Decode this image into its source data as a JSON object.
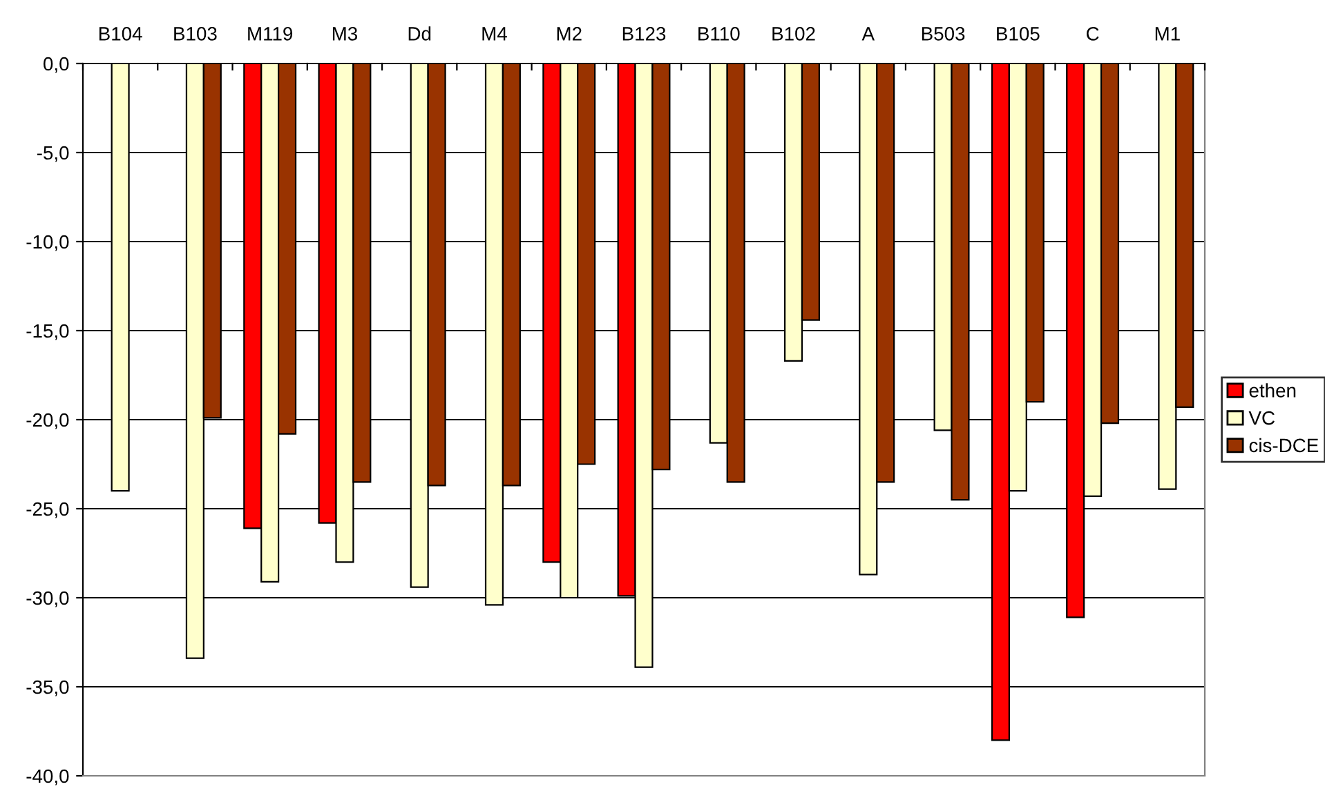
{
  "chart_data": {
    "type": "bar",
    "categories": [
      "B104",
      "B103",
      "M119",
      "M3",
      "Dd",
      "M4",
      "M2",
      "B123",
      "B110",
      "B102",
      "A",
      "B503",
      "B105",
      "C",
      "M1"
    ],
    "series": [
      {
        "name": "ethen",
        "color": "#ff0000",
        "values": [
          null,
          null,
          -26.1,
          -25.8,
          null,
          null,
          -28.0,
          -29.9,
          null,
          null,
          null,
          null,
          -38.0,
          -31.1,
          null
        ]
      },
      {
        "name": "VC",
        "color": "#ffffcc",
        "values": [
          -24.0,
          -33.4,
          -29.1,
          -28.0,
          -29.4,
          -30.4,
          -30.0,
          -33.9,
          -21.3,
          -16.7,
          -28.7,
          -20.6,
          -24.0,
          -24.3,
          -23.9
        ]
      },
      {
        "name": "cis-DCE",
        "color": "#993300",
        "values": [
          null,
          -19.9,
          -20.8,
          -23.5,
          -23.7,
          -23.7,
          -22.5,
          -22.8,
          -23.5,
          -14.4,
          -23.5,
          -24.5,
          -19.0,
          -20.2,
          -19.3
        ]
      }
    ],
    "ylim": [
      -40,
      0
    ],
    "yticks": [
      {
        "value": 0,
        "label": "0,0"
      },
      {
        "value": -5,
        "label": "-5,0"
      },
      {
        "value": -10,
        "label": "-10,0"
      },
      {
        "value": -15,
        "label": "-15,0"
      },
      {
        "value": -20,
        "label": "-20,0"
      },
      {
        "value": -25,
        "label": "-25,0"
      },
      {
        "value": -30,
        "label": "-30,0"
      },
      {
        "value": -35,
        "label": "-35,0"
      },
      {
        "value": -40,
        "label": "-40,0"
      }
    ],
    "grid": "y",
    "legend": "right"
  }
}
